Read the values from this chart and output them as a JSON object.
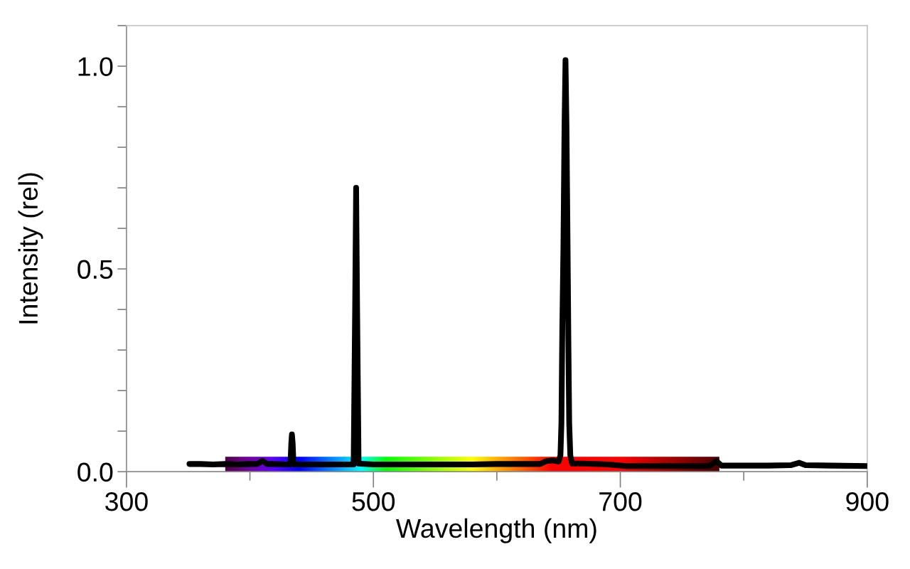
{
  "chart_data": {
    "type": "line",
    "xlabel": "Wavelength (nm)",
    "ylabel": "Intensity (rel)",
    "x": [
      351,
      360,
      370,
      380,
      390,
      400,
      406,
      410,
      414,
      420,
      428,
      432.8,
      433.5,
      434,
      434.6,
      435.3,
      445,
      460,
      475,
      484,
      485.2,
      486,
      486.8,
      488,
      500,
      520,
      540,
      560,
      580,
      600,
      620,
      635,
      640,
      645.5,
      650,
      651.5,
      652.3,
      653,
      653.9,
      654.8,
      655.6,
      656.4,
      657.3,
      658,
      658.6,
      659.5,
      661,
      670,
      690,
      705,
      730,
      755,
      772,
      778,
      782,
      800,
      820,
      838,
      845,
      850,
      870,
      900
    ],
    "series": [
      {
        "color": "#000000",
        "values": [
          0.019,
          0.019,
          0.018,
          0.019,
          0.018,
          0.019,
          0.019,
          0.027,
          0.019,
          0.019,
          0.018,
          0.018,
          0.07,
          0.092,
          0.07,
          0.018,
          0.018,
          0.018,
          0.018,
          0.018,
          0.4,
          0.7,
          0.4,
          0.02,
          0.018,
          0.018,
          0.018,
          0.018,
          0.018,
          0.019,
          0.019,
          0.019,
          0.026,
          0.028,
          0.025,
          0.04,
          0.12,
          0.35,
          0.55,
          0.85,
          1.015,
          0.85,
          0.55,
          0.3,
          0.12,
          0.04,
          0.02,
          0.02,
          0.018,
          0.014,
          0.014,
          0.014,
          0.014,
          0.026,
          0.015,
          0.015,
          0.015,
          0.016,
          0.022,
          0.016,
          0.015,
          0.014
        ]
      }
    ],
    "xlim": [
      300,
      900
    ],
    "ylim": [
      0,
      1.1
    ],
    "xticks": [
      300,
      {
        "value": 400,
        "label": null
      },
      500,
      {
        "value": 600,
        "label": null
      },
      700,
      {
        "value": 800,
        "label": null
      },
      900
    ],
    "yticks": [
      {
        "value": 0,
        "label": "0.0"
      },
      {
        "value": 0.1,
        "label": null
      },
      {
        "value": 0.2,
        "label": null
      },
      {
        "value": 0.3,
        "label": null
      },
      {
        "value": 0.4,
        "label": null
      },
      {
        "value": 0.5,
        "label": "0.5"
      },
      {
        "value": 0.6,
        "label": null
      },
      {
        "value": 0.7,
        "label": null
      },
      {
        "value": 0.8,
        "label": null
      },
      {
        "value": 0.9,
        "label": null
      },
      {
        "value": 1.0,
        "label": "1.0"
      },
      {
        "value": 1.1,
        "label": null
      }
    ],
    "line_style": "solid"
  }
}
